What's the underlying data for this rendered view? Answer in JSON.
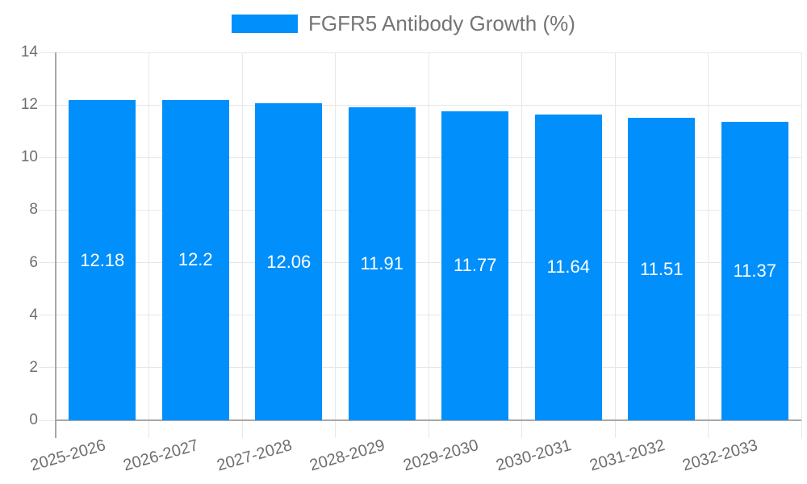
{
  "chart_data": {
    "type": "bar",
    "title": "FGFR5 Antibody Growth (%)",
    "categories": [
      "2025-2026",
      "2026-2027",
      "2027-2028",
      "2028-2029",
      "2029-2030",
      "2030-2031",
      "2031-2032",
      "2032-2033"
    ],
    "values": [
      12.18,
      12.2,
      12.06,
      11.91,
      11.77,
      11.64,
      11.51,
      11.37
    ],
    "value_labels": [
      "12.18",
      "12.2",
      "12.06",
      "11.91",
      "11.77",
      "11.64",
      "11.51",
      "11.37"
    ],
    "xlabel": "",
    "ylabel": "",
    "ylim": [
      0,
      14
    ],
    "ytick_step": 2,
    "ytick_labels": [
      "0",
      "2",
      "4",
      "6",
      "8",
      "10",
      "12",
      "14"
    ],
    "grid": true,
    "legend_position": "top",
    "colors": {
      "bar": "#008FFB",
      "value_label": "#FFFFFF",
      "grid_line": "#E7E7E7",
      "axis_line": "#A8A8A8",
      "tick_label": "#6E6E6E",
      "legend_text": "#757575"
    }
  }
}
